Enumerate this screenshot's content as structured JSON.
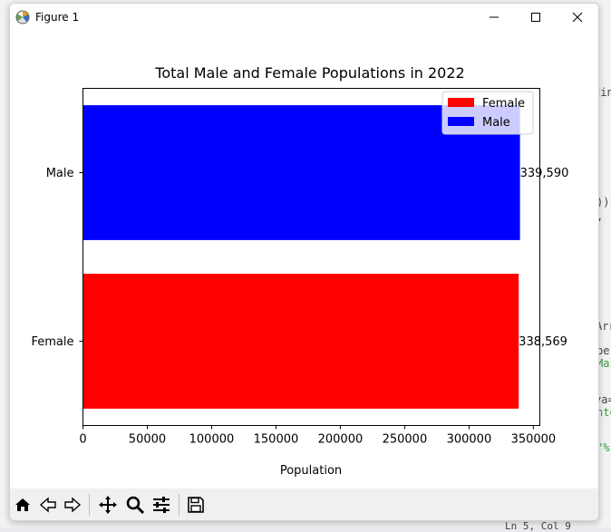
{
  "window": {
    "title": "Figure 1"
  },
  "chart_data": {
    "type": "bar",
    "orientation": "horizontal",
    "title": "Total Male and Female Populations in 2022",
    "xlabel": "Population",
    "ylabel": "",
    "categories": [
      "Female",
      "Male"
    ],
    "values": [
      338569,
      339590
    ],
    "value_labels": [
      "338,569",
      "339,590"
    ],
    "colors": [
      "#ff0000",
      "#0000ff"
    ],
    "xlim": [
      0,
      355000
    ],
    "xticks": [
      0,
      50000,
      100000,
      150000,
      200000,
      250000,
      300000,
      350000
    ],
    "xtick_labels": [
      "0",
      "50000",
      "100000",
      "150000",
      "200000",
      "250000",
      "300000",
      "350000"
    ],
    "grid": false,
    "legend": {
      "placement": "upper-right",
      "entries": [
        "Female",
        "Male"
      ],
      "colors": [
        "#ff0000",
        "#0000ff"
      ]
    }
  },
  "toolbar": {
    "buttons": [
      "home-icon",
      "back-icon",
      "forward-icon",
      "pan-icon",
      "zoom-icon",
      "configure-subplots-icon",
      "save-icon"
    ]
  },
  "background": {
    "fragments": [
      "din",
      "))",
      ",",
      "Arr",
      "be",
      "Ma",
      "va=",
      "nte",
      "\"%",
      "Ln 5, Col 9"
    ]
  }
}
